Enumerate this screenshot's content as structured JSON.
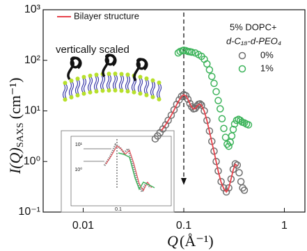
{
  "chart_data": {
    "type": "scatter",
    "xlabel": {
      "main": "Q",
      "unit": "(Å⁻¹)"
    },
    "ylabel": {
      "main": "I(Q)",
      "sub": "SAXS",
      "unit": "(cm⁻¹)"
    },
    "xlim": [
      0.004,
      1.6
    ],
    "ylim": [
      0.1,
      1000
    ],
    "log_x": true,
    "log_y": true,
    "grid": false,
    "xticks": [
      0.01,
      0.1,
      1
    ],
    "yticks": [
      {
        "value": 0.1,
        "label": "10⁻¹"
      },
      {
        "value": 1,
        "label": "10⁰"
      },
      {
        "value": 10,
        "label": "10¹"
      },
      {
        "value": 100,
        "label": "10²"
      },
      {
        "value": 1000,
        "label": "10³"
      }
    ],
    "annotation": "vertically scaled",
    "arrow_x": 0.1,
    "legend_title": [
      "5% DOPC+",
      "d-C₁₈-d-PEO₄"
    ],
    "series": [
      {
        "name": "Bilayer structure",
        "color": "#e8414a",
        "mode": "line",
        "x": [
          0.06,
          0.065,
          0.07,
          0.075,
          0.08,
          0.085,
          0.09,
          0.095,
          0.1,
          0.105,
          0.11,
          0.115,
          0.12,
          0.125,
          0.13,
          0.135,
          0.14,
          0.145,
          0.15,
          0.16,
          0.17,
          0.18,
          0.19,
          0.2,
          0.21,
          0.22,
          0.235,
          0.25,
          0.265,
          0.28,
          0.295,
          0.31,
          0.325,
          0.34
        ],
        "values": [
          4.1,
          5.1,
          6.4,
          8.1,
          10.4,
          13.3,
          16.3,
          19.3,
          20.8,
          19.8,
          16.9,
          13.9,
          11.9,
          11,
          11.1,
          12.3,
          13.3,
          13.6,
          12.8,
          9.8,
          6.4,
          3.9,
          2.4,
          1.55,
          0.98,
          0.64,
          0.39,
          0.29,
          0.25,
          0.3,
          0.45,
          0.68,
          0.88,
          0.82
        ]
      },
      {
        "name": "0%",
        "color": "#6e6e6e",
        "mode": "markers",
        "x": [
          0.052,
          0.055,
          0.058,
          0.062,
          0.066,
          0.07,
          0.075,
          0.08,
          0.085,
          0.09,
          0.095,
          0.1,
          0.105,
          0.11,
          0.115,
          0.12,
          0.125,
          0.13,
          0.135,
          0.14,
          0.145,
          0.15,
          0.16,
          0.17,
          0.18,
          0.19,
          0.2,
          0.21,
          0.22,
          0.235,
          0.25,
          0.265,
          0.28,
          0.295,
          0.31,
          0.325,
          0.34,
          0.355,
          0.37,
          0.385,
          0.4
        ],
        "values": [
          2.8,
          3.2,
          3.7,
          4.4,
          5.3,
          6.5,
          8.2,
          10.5,
          13.5,
          16.5,
          19.5,
          21,
          20,
          17,
          14,
          12,
          11,
          11.2,
          12.5,
          13.5,
          13.8,
          13,
          10,
          6.5,
          4,
          2.5,
          1.6,
          1,
          0.65,
          0.4,
          0.3,
          0.25,
          0.3,
          0.45,
          0.7,
          0.9,
          0.85,
          0.6,
          0.4,
          0.3,
          0.27
        ]
      },
      {
        "name": "1%",
        "color": "#3cb35a",
        "mode": "markers",
        "x": [
          0.088,
          0.092,
          0.097,
          0.1,
          0.105,
          0.11,
          0.115,
          0.12,
          0.13,
          0.14,
          0.15,
          0.16,
          0.17,
          0.18,
          0.19,
          0.2,
          0.21,
          0.22,
          0.23,
          0.24,
          0.25,
          0.26,
          0.27,
          0.28,
          0.29,
          0.3,
          0.31,
          0.32,
          0.335,
          0.35,
          0.365,
          0.38,
          0.4,
          0.42,
          0.44
        ],
        "values": [
          140,
          150,
          155,
          158,
          155,
          150,
          148,
          145,
          140,
          130,
          120,
          105,
          85,
          65,
          48,
          35,
          24,
          16,
          11,
          7,
          4.5,
          3,
          2.2,
          2,
          2.4,
          3.2,
          4.3,
          5.5,
          6.5,
          6.8,
          6.5,
          6,
          5.8,
          5.5,
          5.3
        ]
      }
    ],
    "inset": {
      "yticks": [
        "10¹",
        "10⁰"
      ],
      "xticks": [
        "0.1"
      ]
    }
  }
}
